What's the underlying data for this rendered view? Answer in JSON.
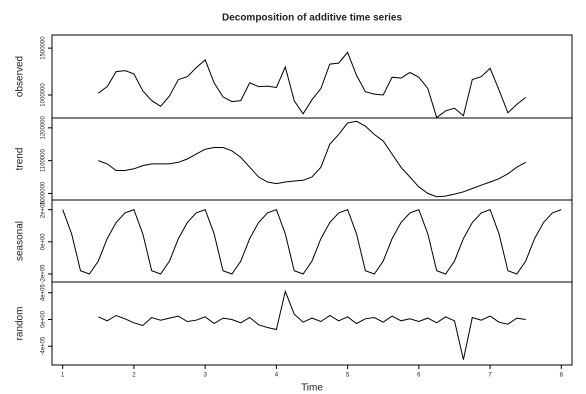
{
  "title": "Decomposition of additive time series",
  "chart_data": [
    {
      "type": "line",
      "ylabel": "observed",
      "color": "#000000",
      "x": [
        1.5,
        1.625,
        1.75,
        1.875,
        2,
        2.125,
        2.25,
        2.375,
        2.5,
        2.625,
        2.75,
        2.875,
        3,
        3.125,
        3.25,
        3.375,
        3.5,
        3.625,
        3.75,
        3.875,
        4,
        4.125,
        4.25,
        4.375,
        4.5,
        4.625,
        4.75,
        4.875,
        5,
        5.125,
        5.25,
        5.375,
        5.5,
        5.625,
        5.75,
        5.875,
        6,
        6.125,
        6.25,
        6.375,
        6.5,
        6.625,
        6.75,
        6.875,
        7,
        7.125,
        7.25,
        7.375,
        7.5
      ],
      "values": [
        1020000,
        1090000,
        1250000,
        1260000,
        1225000,
        1045000,
        940000,
        880000,
        990000,
        1165000,
        1195000,
        1290000,
        1375000,
        1130000,
        980000,
        930000,
        940000,
        1130000,
        1090000,
        1095000,
        1080000,
        1300000,
        938000,
        800000,
        950000,
        1070000,
        1330000,
        1340000,
        1455000,
        1210000,
        1035000,
        1010000,
        1000000,
        1190000,
        1180000,
        1240000,
        1190000,
        1070000,
        760000,
        832000,
        858000,
        780000,
        1165000,
        1195000,
        1285000,
        1055000,
        810000,
        900000,
        975000
      ],
      "ylim": [
        755000,
        1640000
      ],
      "yticks": [
        1000000,
        1500000
      ]
    },
    {
      "type": "line",
      "ylabel": "trend",
      "color": "#000000",
      "x": [
        1.5,
        1.625,
        1.75,
        1.875,
        2,
        2.125,
        2.25,
        2.375,
        2.5,
        2.625,
        2.75,
        2.875,
        3,
        3.125,
        3.25,
        3.375,
        3.5,
        3.625,
        3.75,
        3.875,
        4,
        4.125,
        4.25,
        4.375,
        4.5,
        4.625,
        4.75,
        4.875,
        5,
        5.125,
        5.25,
        5.375,
        5.5,
        5.625,
        5.75,
        5.875,
        6,
        6.125,
        6.25,
        6.375,
        6.5,
        6.625,
        6.75,
        6.875,
        7,
        7.125,
        7.25,
        7.375,
        7.5
      ],
      "values": [
        1100000,
        1090000,
        1070000,
        1070000,
        1075000,
        1085000,
        1090000,
        1090000,
        1090000,
        1095000,
        1105000,
        1120000,
        1135000,
        1140000,
        1140000,
        1130000,
        1110000,
        1080000,
        1050000,
        1035000,
        1030000,
        1035000,
        1038000,
        1040000,
        1050000,
        1080000,
        1150000,
        1180000,
        1215000,
        1220000,
        1205000,
        1180000,
        1160000,
        1120000,
        1080000,
        1050000,
        1020000,
        1000000,
        990000,
        992000,
        998000,
        1005000,
        1015000,
        1025000,
        1035000,
        1045000,
        1060000,
        1080000,
        1095000
      ],
      "ylim": [
        980000,
        1230000
      ],
      "yticks": [
        1000000,
        1100000,
        1200000
      ]
    },
    {
      "type": "line",
      "ylabel": "seasonal",
      "color": "#000000",
      "x": [
        1,
        1.125,
        1.25,
        1.375,
        1.5,
        1.625,
        1.75,
        1.875,
        2,
        2.125,
        2.25,
        2.375,
        2.5,
        2.625,
        2.75,
        2.875,
        3,
        3.125,
        3.25,
        3.375,
        3.5,
        3.625,
        3.75,
        3.875,
        4,
        4.125,
        4.25,
        4.375,
        4.5,
        4.625,
        4.75,
        4.875,
        5,
        5.125,
        5.25,
        5.375,
        5.5,
        5.625,
        5.75,
        5.875,
        6,
        6.125,
        6.25,
        6.375,
        6.5,
        6.625,
        6.75,
        6.875,
        7,
        7.125,
        7.25,
        7.375,
        7.5,
        7.625,
        7.75,
        7.875,
        8
      ],
      "values": [
        200000,
        50000,
        -180000,
        -200000,
        -120000,
        20000,
        120000,
        180000,
        200000,
        50000,
        -180000,
        -200000,
        -120000,
        20000,
        120000,
        180000,
        200000,
        50000,
        -180000,
        -200000,
        -120000,
        20000,
        120000,
        180000,
        200000,
        50000,
        -180000,
        -200000,
        -120000,
        20000,
        120000,
        180000,
        200000,
        50000,
        -180000,
        -200000,
        -120000,
        20000,
        120000,
        180000,
        200000,
        50000,
        -180000,
        -200000,
        -120000,
        20000,
        120000,
        180000,
        200000,
        50000,
        -180000,
        -200000,
        -120000,
        20000,
        120000,
        180000,
        200000
      ],
      "ylim": [
        -250000,
        260000
      ],
      "yticks": [
        {
          "value": -200000,
          "label": "-2e+05"
        },
        {
          "value": 0,
          "label": "0e+00"
        },
        {
          "value": 200000,
          "label": "2e+05"
        }
      ]
    },
    {
      "type": "line",
      "ylabel": "random",
      "color": "#000000",
      "x": [
        1.5,
        1.625,
        1.75,
        1.875,
        2,
        2.125,
        2.25,
        2.375,
        2.5,
        2.625,
        2.75,
        2.875,
        3,
        3.125,
        3.25,
        3.375,
        3.5,
        3.625,
        3.75,
        3.875,
        4,
        4.125,
        4.25,
        4.375,
        4.5,
        4.625,
        4.75,
        4.875,
        5,
        5.125,
        5.25,
        5.375,
        5.5,
        5.625,
        5.75,
        5.875,
        6,
        6.125,
        6.25,
        6.375,
        6.5,
        6.625,
        6.75,
        6.875,
        7,
        7.125,
        7.25,
        7.375,
        7.5
      ],
      "values": [
        40000,
        -20000,
        60000,
        10000,
        -50000,
        -90000,
        30000,
        -10000,
        20000,
        50000,
        -30000,
        -10000,
        40000,
        -60000,
        20000,
        0,
        -50000,
        30000,
        -80000,
        -120000,
        -150000,
        420000,
        80000,
        -40000,
        20000,
        -30000,
        60000,
        -20000,
        40000,
        -60000,
        10000,
        30000,
        -40000,
        50000,
        -20000,
        10000,
        -30000,
        20000,
        -50000,
        40000,
        -20000,
        -600000,
        30000,
        -10000,
        50000,
        -40000,
        -70000,
        20000,
        0
      ],
      "ylim": [
        -680000,
        560000
      ],
      "yticks": [
        {
          "value": -400000,
          "label": "-4e+05"
        },
        {
          "value": 0,
          "label": "0e+00"
        },
        {
          "value": 400000,
          "label": "4e+05"
        }
      ],
      "xlabel": "Time",
      "xlim": [
        0.85,
        8.15
      ],
      "xticks": [
        1,
        2,
        3,
        4,
        5,
        6,
        7,
        8
      ]
    }
  ]
}
